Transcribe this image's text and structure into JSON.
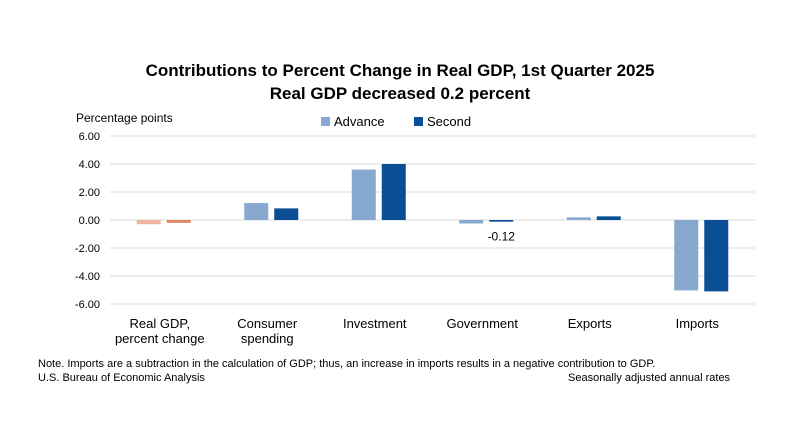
{
  "chart_data": {
    "type": "bar",
    "title": "Contributions to Percent Change in Real GDP, 1st Quarter 2025",
    "subtitle": "Real GDP decreased 0.2 percent",
    "ylabel": "Percentage points",
    "ylim": [
      -6,
      6
    ],
    "yticks": [
      "6.00",
      "4.00",
      "2.00",
      "0.00",
      "-2.00",
      "-4.00",
      "-6.00"
    ],
    "grid": true,
    "legend_position": "top-center",
    "categories": [
      [
        "Real GDP,",
        "percent change"
      ],
      [
        "Consumer",
        "spending"
      ],
      [
        "Investment"
      ],
      [
        "Government"
      ],
      [
        "Exports"
      ],
      [
        "Imports"
      ]
    ],
    "series": [
      {
        "name": "Advance",
        "color": "#87a9cf",
        "values": [
          -0.3,
          1.21,
          3.6,
          -0.25,
          0.19,
          -5.03
        ]
      },
      {
        "name": "Second",
        "color": "#0a4f96",
        "values": [
          -0.2,
          0.83,
          4.0,
          -0.12,
          0.26,
          -5.1
        ]
      }
    ],
    "first_category_colors": [
      "#efb49c",
      "#e0835e"
    ],
    "data_labels": [
      {
        "category_index": 3,
        "series_index": 1,
        "text": "-0.12"
      }
    ]
  },
  "notes": {
    "line1": "Note. Imports are a subtraction in the calculation of GDP; thus, an increase in imports results in a negative contribution to GDP.",
    "source": "U.S. Bureau of Economic Analysis",
    "rates": "Seasonally adjusted annual rates"
  }
}
